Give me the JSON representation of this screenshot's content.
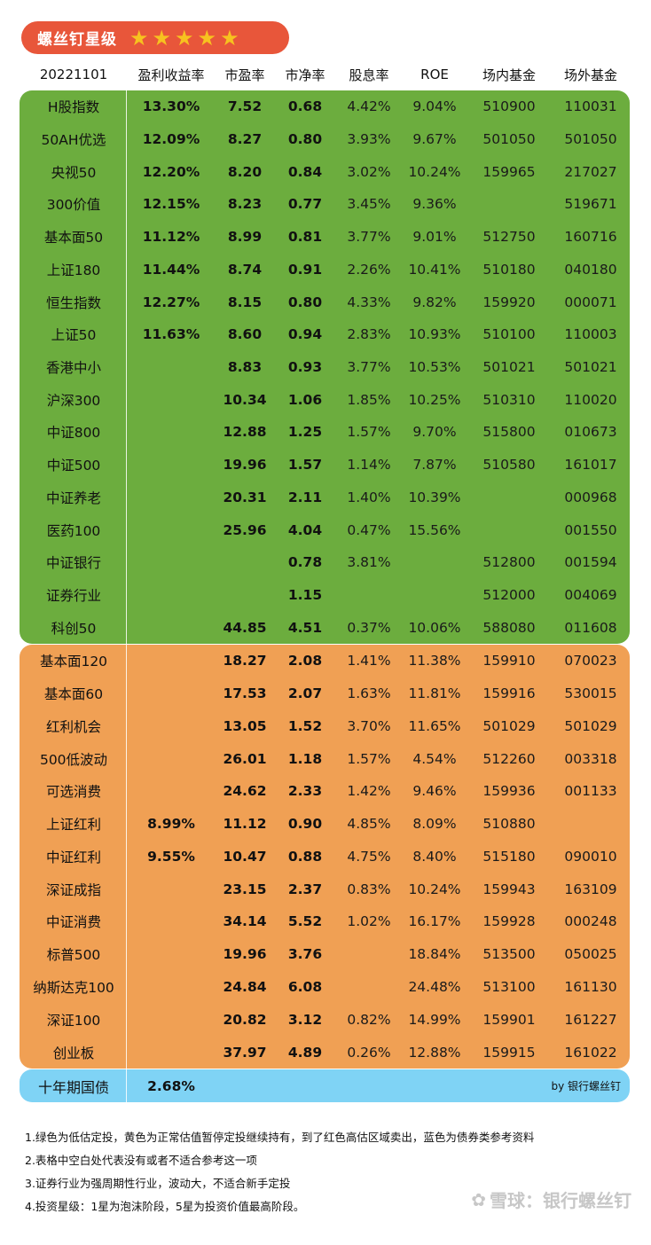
{
  "banner": {
    "title": "螺丝钉星级",
    "stars": 5,
    "star_icon": "star-icon",
    "bg_color": "#e8563a",
    "star_color": "#f7c21f"
  },
  "header": [
    "20221101",
    "盈利收益率",
    "市盈率",
    "市净率",
    "股息率",
    "ROE",
    "场内基金",
    "场外基金"
  ],
  "colors": {
    "green": "#6cad3e",
    "orange": "#f0a054",
    "blue": "#7fd3f5"
  },
  "green_rows": [
    [
      "H股指数",
      "13.30%",
      "7.52",
      "0.68",
      "4.42%",
      "9.04%",
      "510900",
      "110031"
    ],
    [
      "50AH优选",
      "12.09%",
      "8.27",
      "0.80",
      "3.93%",
      "9.67%",
      "501050",
      "501050"
    ],
    [
      "央视50",
      "12.20%",
      "8.20",
      "0.84",
      "3.02%",
      "10.24%",
      "159965",
      "217027"
    ],
    [
      "300价值",
      "12.15%",
      "8.23",
      "0.77",
      "3.45%",
      "9.36%",
      "",
      "519671"
    ],
    [
      "基本面50",
      "11.12%",
      "8.99",
      "0.81",
      "3.77%",
      "9.01%",
      "512750",
      "160716"
    ],
    [
      "上证180",
      "11.44%",
      "8.74",
      "0.91",
      "2.26%",
      "10.41%",
      "510180",
      "040180"
    ],
    [
      "恒生指数",
      "12.27%",
      "8.15",
      "0.80",
      "4.33%",
      "9.82%",
      "159920",
      "000071"
    ],
    [
      "上证50",
      "11.63%",
      "8.60",
      "0.94",
      "2.83%",
      "10.93%",
      "510100",
      "110003"
    ],
    [
      "香港中小",
      "",
      "8.83",
      "0.93",
      "3.77%",
      "10.53%",
      "501021",
      "501021"
    ],
    [
      "沪深300",
      "",
      "10.34",
      "1.06",
      "1.85%",
      "10.25%",
      "510310",
      "110020"
    ],
    [
      "中证800",
      "",
      "12.88",
      "1.25",
      "1.57%",
      "9.70%",
      "515800",
      "010673"
    ],
    [
      "中证500",
      "",
      "19.96",
      "1.57",
      "1.14%",
      "7.87%",
      "510580",
      "161017"
    ],
    [
      "中证养老",
      "",
      "20.31",
      "2.11",
      "1.40%",
      "10.39%",
      "",
      "000968"
    ],
    [
      "医药100",
      "",
      "25.96",
      "4.04",
      "0.47%",
      "15.56%",
      "",
      "001550"
    ],
    [
      "中证银行",
      "",
      "",
      "0.78",
      "3.81%",
      "",
      "512800",
      "001594"
    ],
    [
      "证券行业",
      "",
      "",
      "1.15",
      "",
      "",
      "512000",
      "004069"
    ],
    [
      "科创50",
      "",
      "44.85",
      "4.51",
      "0.37%",
      "10.06%",
      "588080",
      "011608"
    ]
  ],
  "orange_rows": [
    [
      "基本面120",
      "",
      "18.27",
      "2.08",
      "1.41%",
      "11.38%",
      "159910",
      "070023"
    ],
    [
      "基本面60",
      "",
      "17.53",
      "2.07",
      "1.63%",
      "11.81%",
      "159916",
      "530015"
    ],
    [
      "红利机会",
      "",
      "13.05",
      "1.52",
      "3.70%",
      "11.65%",
      "501029",
      "501029"
    ],
    [
      "500低波动",
      "",
      "26.01",
      "1.18",
      "1.57%",
      "4.54%",
      "512260",
      "003318"
    ],
    [
      "可选消费",
      "",
      "24.62",
      "2.33",
      "1.42%",
      "9.46%",
      "159936",
      "001133"
    ],
    [
      "上证红利",
      "8.99%",
      "11.12",
      "0.90",
      "4.85%",
      "8.09%",
      "510880",
      ""
    ],
    [
      "中证红利",
      "9.55%",
      "10.47",
      "0.88",
      "4.75%",
      "8.40%",
      "515180",
      "090010"
    ],
    [
      "深证成指",
      "",
      "23.15",
      "2.37",
      "0.83%",
      "10.24%",
      "159943",
      "163109"
    ],
    [
      "中证消费",
      "",
      "34.14",
      "5.52",
      "1.02%",
      "16.17%",
      "159928",
      "000248"
    ],
    [
      "标普500",
      "",
      "19.96",
      "3.76",
      "",
      "18.84%",
      "513500",
      "050025"
    ],
    [
      "纳斯达克100",
      "",
      "24.84",
      "6.08",
      "",
      "24.48%",
      "513100",
      "161130"
    ],
    [
      "深证100",
      "",
      "20.82",
      "3.12",
      "0.82%",
      "14.99%",
      "159901",
      "161227"
    ],
    [
      "创业板",
      "",
      "37.97",
      "4.89",
      "0.26%",
      "12.88%",
      "159915",
      "161022"
    ]
  ],
  "bond_row": {
    "name": "十年期国债",
    "yield": "2.68%",
    "byline": "by 银行螺丝钉"
  },
  "notes": [
    "1.绿色为低估定投，黄色为正常估值暂停定投继续持有，到了红色高估区域卖出，蓝色为债券类参考资料",
    "2.表格中空白处代表没有或者不适合参考这一项",
    "3.证券行业为强周期性行业，波动大，不适合新手定投",
    "4.投资星级：1星为泡沫阶段，5星为投资价值最高阶段。"
  ],
  "watermark": {
    "icon": "xueqiu-logo-icon",
    "text": "雪球：银行螺丝钉"
  }
}
